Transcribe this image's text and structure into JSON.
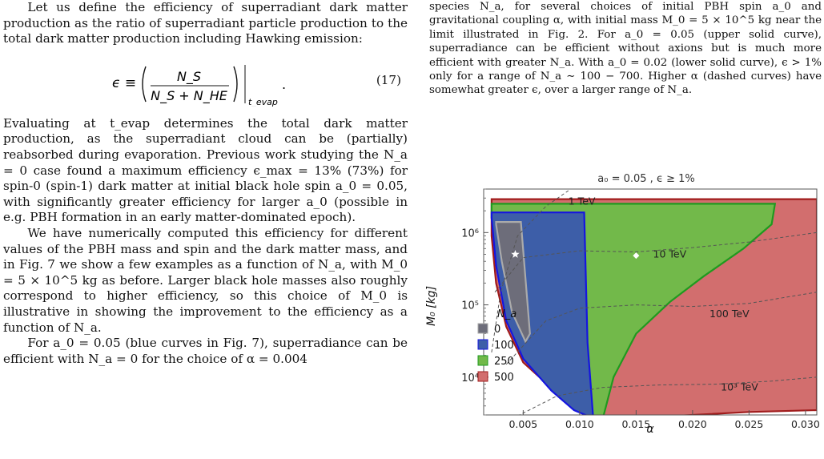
{
  "left_column": {
    "para1": "Let us define the efficiency of superradiant dark matter production as the ratio of superradiant particle production to the total dark matter production including Hawking emission:",
    "equation": {
      "lhs": "ϵ ≡",
      "numerator": "N_S",
      "denominator": "N_S + N_HE",
      "subscript": "t_evap",
      "number": "(17)"
    },
    "para2": "Evaluating at t_evap determines the total dark matter production, as the superradiant cloud can be (partially) reabsorbed during evaporation. Previous work studying the N_a = 0 case found a maximum efficiency ϵ_max = 13% (73%) for spin-0 (spin-1) dark matter at initial black hole spin a_0 = 0.05, with significantly greater efficiency for larger a_0 (possible in e.g. PBH formation in an early matter-dominated epoch).",
    "para3": "We have numerically computed this efficiency for different values of the PBH mass and spin and the dark matter mass, and in Fig. 7 we show a few examples as a function of N_a, with M_0 = 5 × 10^5 kg as before. Larger black hole masses also roughly correspond to higher efficiency, so this choice of M_0 is illustrative in showing the improvement to the efficiency as a function of N_a.",
    "para4": "For a_0 = 0.05 (blue curves in Fig. 7), superradiance can be efficient with N_a = 0 for the choice of α = 0.004"
  },
  "right_column": {
    "caption": "species N_a, for several choices of initial PBH spin a_0 and gravitational coupling α, with initial mass M_0 = 5 × 10^5 kg near the limit illustrated in Fig. 2. For a_0 = 0.05 (upper solid curve), superradiance can be efficient without axions but is much more efficient with greater N_a. With a_0 = 0.02 (lower solid curve), ϵ > 1% only for a range of N_a ∼ 100 − 700. Higher α (dashed curves) have somewhat greater ϵ, over a larger range of N_a."
  },
  "chart_data": {
    "type": "area",
    "title": "a₀ = 0.05 ,  ϵ ≥ 1%",
    "xlabel": "α",
    "ylabel": "M₀  [kg]",
    "xlim": [
      0.0015,
      0.031
    ],
    "ylim": [
      3000,
      4000000
    ],
    "yscale": "log",
    "x_ticks": [
      0.005,
      0.01,
      0.015,
      0.02,
      0.025,
      0.03
    ],
    "x_tick_labels": [
      "0.005",
      "0.010",
      "0.015",
      "0.020",
      "0.025",
      "0.030"
    ],
    "y_ticks": [
      10000,
      100000,
      1000000
    ],
    "y_tick_labels": [
      "10⁴",
      "10⁵",
      "10⁶"
    ],
    "legend_title": "N_a",
    "legend_placement": "bottom-left",
    "series": [
      {
        "name": "500",
        "fill": "#d26e6e",
        "stroke": "#a01c1c",
        "x": [
          0.0022,
          0.031,
          0.031,
          0.025,
          0.02,
          0.015,
          0.0125,
          0.011,
          0.008,
          0.005,
          0.0035,
          0.0026,
          0.0022
        ],
        "y": [
          2900000,
          2900000,
          3500,
          3300,
          3000,
          2700,
          2450,
          3000,
          6000,
          16000,
          50000,
          200000,
          900000
        ]
      },
      {
        "name": "250",
        "fill": "#72b94a",
        "stroke": "#1f9a1f",
        "x": [
          0.0022,
          0.0273,
          0.027,
          0.0245,
          0.021,
          0.018,
          0.015,
          0.013,
          0.012,
          0.0112,
          0.009,
          0.006,
          0.004,
          0.0028,
          0.0022
        ],
        "y": [
          2500000,
          2500000,
          1300000,
          600000,
          250000,
          110000,
          40000,
          10000,
          2500,
          2800,
          5000,
          14000,
          60000,
          300000,
          1600000
        ]
      },
      {
        "name": "100",
        "fill": "#3d5ea8",
        "stroke": "#1515e0",
        "x": [
          0.0022,
          0.0104,
          0.0107,
          0.0112,
          0.0095,
          0.0075,
          0.005,
          0.0035,
          0.0026,
          0.0022
        ],
        "y": [
          1900000,
          1900000,
          30000,
          2700,
          3500,
          6500,
          18000,
          60000,
          350000,
          1600000
        ]
      },
      {
        "name": "0",
        "fill": "#6d6d7a",
        "stroke": "#aaaaaa",
        "x": [
          0.0026,
          0.0048,
          0.0056,
          0.0052,
          0.004,
          0.0031,
          0.0026
        ],
        "y": [
          1400000,
          1400000,
          40000,
          31000,
          80000,
          400000,
          1300000
        ]
      }
    ],
    "dashed_curves": [
      {
        "label": "1 TeV",
        "x": [
          0.0022,
          0.003,
          0.0045,
          0.007,
          0.009
        ],
        "y": [
          22000,
          150000,
          900000,
          2300000,
          3800000
        ]
      },
      {
        "label": "10 TeV",
        "x": [
          0.0025,
          0.005,
          0.01,
          0.015,
          0.02,
          0.025,
          0.031
        ],
        "y": [
          150000,
          450000,
          560000,
          540000,
          620000,
          740000,
          1000000
        ]
      },
      {
        "label": "100 TeV",
        "x": [
          0.0035,
          0.007,
          0.01,
          0.015,
          0.02,
          0.025,
          0.031
        ],
        "y": [
          15000,
          60000,
          90000,
          100000,
          95000,
          105000,
          150000
        ]
      },
      {
        "label": "10³ TeV",
        "x": [
          0.0045,
          0.008,
          0.012,
          0.017,
          0.022,
          0.027,
          0.031
        ],
        "y": [
          2900,
          5500,
          7200,
          7800,
          8000,
          8800,
          10000
        ]
      }
    ],
    "markers": [
      {
        "symbol": "star",
        "color": "#ffffff",
        "x": 0.0043,
        "y": 500000
      },
      {
        "symbol": "diamond",
        "color": "#ffffff",
        "x": 0.015,
        "y": 480000
      }
    ]
  }
}
